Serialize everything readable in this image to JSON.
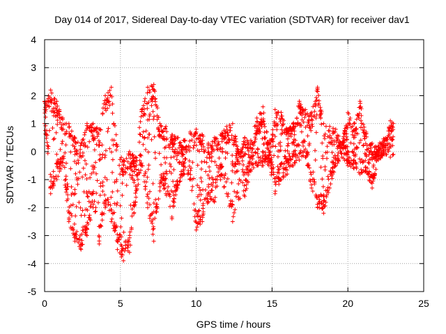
{
  "chart_data": {
    "type": "scatter",
    "title": "Day 014 of 2017, Sidereal Day-to-day VTEC variation (SDTVAR) for receiver dav1",
    "xlabel": "GPS time / hours",
    "ylabel": "SDTVAR / TECUs",
    "xlim": [
      0,
      25
    ],
    "ylim": [
      -5,
      4
    ],
    "x_ticks": [
      "0",
      "5",
      "10",
      "15",
      "20",
      "25"
    ],
    "y_ticks": [
      "4",
      "3",
      "2",
      "1",
      "0",
      "-1",
      "-2",
      "-3",
      "-4",
      "-5"
    ],
    "grid": true,
    "marker": "+",
    "marker_color": "#ff0000",
    "x_range_data": [
      0,
      23
    ],
    "series": [
      {
        "name": "SDTVAR",
        "envelope_x": [
          0.0,
          0.4,
          0.8,
          1.2,
          1.6,
          2.0,
          2.4,
          2.8,
          3.2,
          3.6,
          4.0,
          4.4,
          4.8,
          5.2,
          5.6,
          6.0,
          6.4,
          6.8,
          7.2,
          7.6,
          8.0,
          8.4,
          8.8,
          9.2,
          9.6,
          10.0,
          10.4,
          10.8,
          11.2,
          11.6,
          12.0,
          12.4,
          12.8,
          13.2,
          13.6,
          14.0,
          14.4,
          14.8,
          15.2,
          15.6,
          16.0,
          16.4,
          16.8,
          17.2,
          17.6,
          18.0,
          18.4,
          18.8,
          19.2,
          19.6,
          20.0,
          20.4,
          20.8,
          21.2,
          21.6,
          22.0,
          22.4,
          22.8,
          23.0
        ],
        "envelope_top": [
          1.8,
          2.2,
          1.8,
          1.2,
          1.0,
          0.5,
          0.3,
          1.0,
          1.0,
          0.8,
          2.0,
          2.3,
          0.2,
          -0.3,
          0.0,
          -0.2,
          1.5,
          2.3,
          2.4,
          1.0,
          0.9,
          0.6,
          0.5,
          0.4,
          0.7,
          0.8,
          0.6,
          0.3,
          0.5,
          0.6,
          0.9,
          1.0,
          0.0,
          0.5,
          0.4,
          1.2,
          1.6,
          0.3,
          1.5,
          1.4,
          0.8,
          1.0,
          1.8,
          1.5,
          1.4,
          2.3,
          1.0,
          0.9,
          0.8,
          0.3,
          1.4,
          1.0,
          1.8,
          0.7,
          0.3,
          0.2,
          0.4,
          1.1,
          1.0
        ],
        "envelope_bottom": [
          1.0,
          -1.5,
          -1.0,
          -0.5,
          -2.5,
          -3.2,
          -3.5,
          -3.0,
          -2.0,
          -3.3,
          -2.0,
          -2.5,
          -3.5,
          -3.9,
          -3.6,
          -1.8,
          -0.5,
          -2.0,
          -3.2,
          -1.4,
          -1.5,
          -2.4,
          -1.2,
          -0.8,
          -1.0,
          -2.8,
          -2.5,
          -1.8,
          -1.8,
          -1.0,
          -1.5,
          -2.5,
          -1.7,
          -1.6,
          -0.7,
          -0.5,
          -0.5,
          -0.5,
          -1.5,
          -1.0,
          -0.8,
          -0.5,
          -0.3,
          -0.2,
          -1.3,
          -2.0,
          -2.2,
          -1.3,
          -0.5,
          -0.2,
          -0.5,
          -0.6,
          -0.8,
          -0.7,
          -1.3,
          -0.3,
          -0.1,
          -0.2,
          -0.1
        ]
      }
    ]
  }
}
